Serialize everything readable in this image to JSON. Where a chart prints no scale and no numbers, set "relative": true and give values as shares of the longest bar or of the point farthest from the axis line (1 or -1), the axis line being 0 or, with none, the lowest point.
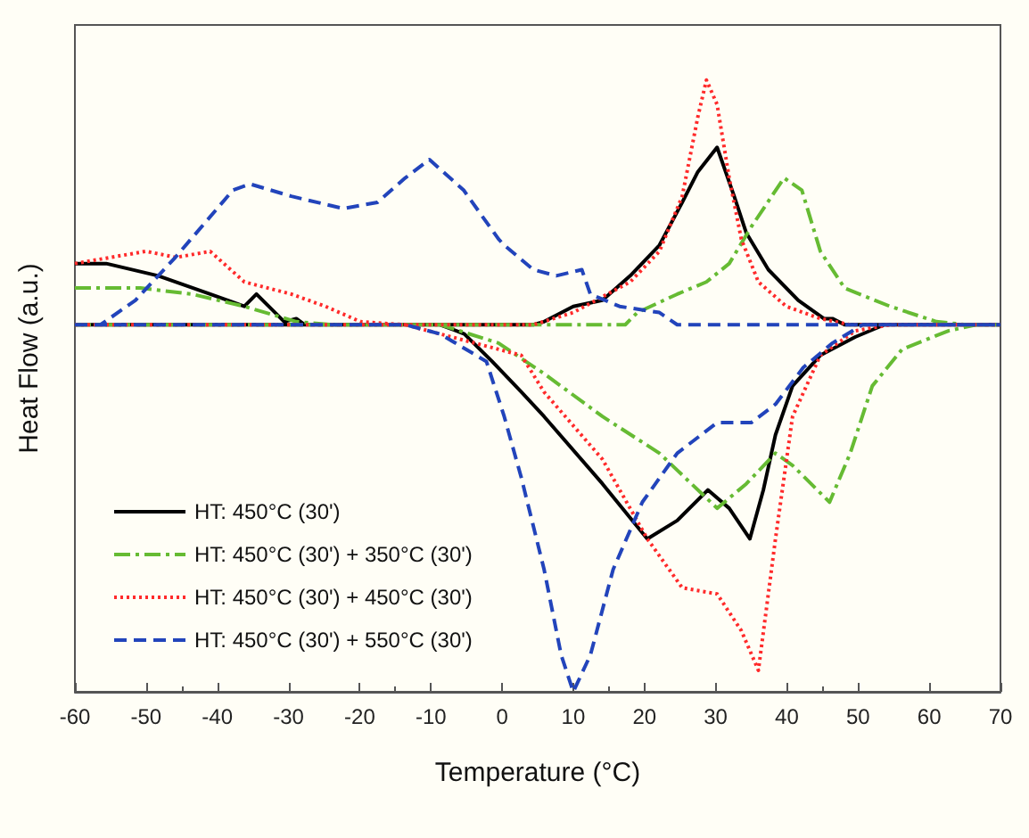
{
  "chart_data": {
    "type": "line",
    "relative": true,
    "xlabel": "Temperature (°C)",
    "ylabel": "Heat Flow (a.u.)",
    "xlim": [
      -60,
      70
    ],
    "xticks": [
      -60,
      -50,
      -40,
      -30,
      -20,
      -10,
      0,
      10,
      20,
      30,
      40,
      50,
      60,
      70
    ],
    "grid": false,
    "legend": "bottom left",
    "marker": "none",
    "series": [
      {
        "name": "HT: 450°C (30')",
        "color": "#000000",
        "line_style": "solid",
        "x": [
          -60,
          -55.6,
          -48.3,
          -41,
          -36.2,
          -34.5,
          -30.6,
          -28.9,
          -27.7,
          4.4,
          5.9,
          10,
          14.1,
          18,
          22.1,
          25.3,
          27.5,
          30.2,
          32.6,
          34.3,
          37.4,
          41.6,
          45.2,
          46.4,
          48.1,
          70,
          null,
          -60,
          -8.7,
          -5.3,
          -1.4,
          2.7,
          5.9,
          14.1,
          20.4,
          24.6,
          28.9,
          31.9,
          34.8,
          36.7,
          38.4,
          40.8,
          44.7,
          49.6,
          53.7,
          70
        ],
        "values": [
          0.7,
          0.7,
          0.68,
          0.65,
          0.63,
          0.65,
          0.605,
          0.61,
          0.6,
          0.6,
          0.605,
          0.63,
          0.64,
          0.68,
          0.73,
          0.8,
          0.85,
          0.89,
          0.81,
          0.75,
          0.69,
          0.64,
          0.61,
          0.61,
          0.6,
          0.6,
          null,
          0.6,
          0.6,
          0.585,
          0.54,
          0.49,
          0.45,
          0.34,
          0.25,
          0.28,
          0.33,
          0.3,
          0.25,
          0.33,
          0.42,
          0.5,
          0.55,
          0.58,
          0.6,
          0.6
        ]
      },
      {
        "name": "HT: 450°C (30') + 350°C (30')",
        "color": "#66bb33",
        "line_style": "dashdot",
        "x": [
          -60,
          -50.8,
          -43.5,
          -36.2,
          -28.9,
          -24,
          17.3,
          19,
          24.6,
          28.7,
          31.9,
          35,
          39.6,
          42.1,
          44.7,
          48.1,
          54.5,
          61,
          65.2,
          70,
          null,
          -60,
          -8.7,
          -0.5,
          5.9,
          14.1,
          22.1,
          30.2,
          34.3,
          38.4,
          40.8,
          46,
          48.9,
          52,
          56.2,
          62.7,
          66.6,
          70
        ],
        "values": [
          0.66,
          0.66,
          0.65,
          0.63,
          0.605,
          0.6,
          0.6,
          0.62,
          0.65,
          0.67,
          0.7,
          0.76,
          0.84,
          0.82,
          0.72,
          0.66,
          0.63,
          0.605,
          0.6,
          0.6,
          null,
          0.6,
          0.6,
          0.57,
          0.52,
          0.45,
          0.39,
          0.3,
          0.34,
          0.39,
          0.37,
          0.31,
          0.39,
          0.5,
          0.56,
          0.59,
          0.6,
          0.6
        ]
      },
      {
        "name": "HT: 450°C (30') + 450°C (30')",
        "color": "#ff2a2a",
        "line_style": "dotted",
        "x": [
          -60,
          -50,
          -45.8,
          -41,
          -36.2,
          -29.6,
          -24.8,
          -19.9,
          -13.6,
          4.4,
          10,
          18,
          22.1,
          25.3,
          27.5,
          28.7,
          30.2,
          31.9,
          33.6,
          36,
          39.9,
          44.7,
          48.9,
          70,
          null,
          -60,
          -13.6,
          2.7,
          5.9,
          14.1,
          20.4,
          25.3,
          30.2,
          33.6,
          36,
          38.4,
          40.8,
          44.7,
          49.6,
          54.5,
          70
        ],
        "values": [
          0.7,
          0.72,
          0.71,
          0.72,
          0.67,
          0.65,
          0.63,
          0.605,
          0.6,
          0.6,
          0.62,
          0.67,
          0.72,
          0.81,
          0.94,
          1.0,
          0.96,
          0.84,
          0.74,
          0.67,
          0.63,
          0.61,
          0.6,
          0.6,
          null,
          0.6,
          0.6,
          0.55,
          0.49,
          0.38,
          0.25,
          0.17,
          0.16,
          0.1,
          0.035,
          0.25,
          0.45,
          0.55,
          0.59,
          0.6,
          0.6
        ]
      },
      {
        "name": "HT: 450°C (30') + 550°C (30')",
        "color": "#2244bb",
        "line_style": "dashed",
        "x": [
          -60,
          -56.4,
          -51.5,
          -45.9,
          -37.8,
          -35.4,
          -29.6,
          -22.3,
          -17.5,
          -13.6,
          -10.2,
          -5.4,
          -0.5,
          0.3,
          4.4,
          7.6,
          11.2,
          12.4,
          16.5,
          22.1,
          24.6,
          70,
          null,
          -60,
          -13.6,
          -8.7,
          -2.2,
          0.3,
          2.7,
          5.9,
          8.3,
          10,
          12.4,
          15.6,
          19.7,
          24.6,
          30.2,
          35,
          38.4,
          42.3,
          46.4,
          50.6,
          70
        ],
        "values": [
          0.6,
          0.6,
          0.64,
          0.71,
          0.82,
          0.83,
          0.81,
          0.79,
          0.8,
          0.84,
          0.87,
          0.82,
          0.74,
          0.73,
          0.69,
          0.68,
          0.69,
          0.65,
          0.63,
          0.62,
          0.6,
          0.6,
          null,
          0.6,
          0.6,
          0.585,
          0.54,
          0.45,
          0.35,
          0.2,
          0.06,
          0,
          0.06,
          0.2,
          0.31,
          0.39,
          0.44,
          0.44,
          0.47,
          0.53,
          0.57,
          0.6,
          0.6
        ]
      }
    ]
  }
}
